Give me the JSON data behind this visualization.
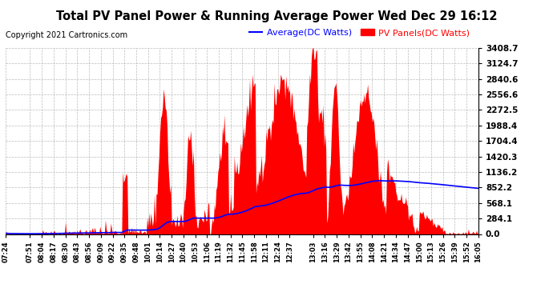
{
  "title": "Total PV Panel Power & Running Average Power Wed Dec 29 16:12",
  "copyright": "Copyright 2021 Cartronics.com",
  "legend_avg": "Average(DC Watts)",
  "legend_pv": "PV Panels(DC Watts)",
  "avg_color": "blue",
  "pv_color": "red",
  "background_color": "white",
  "grid_color": "#aaaaaa",
  "yticks": [
    0.0,
    284.1,
    568.1,
    852.2,
    1136.2,
    1420.3,
    1704.4,
    1988.4,
    2272.5,
    2556.6,
    2840.6,
    3124.7,
    3408.7
  ],
  "ylim": [
    0,
    3408.7
  ],
  "xtick_labels": [
    "07:24",
    "07:51",
    "08:04",
    "08:17",
    "08:30",
    "08:43",
    "08:56",
    "09:09",
    "09:22",
    "09:35",
    "09:48",
    "10:01",
    "10:14",
    "10:27",
    "10:40",
    "10:53",
    "11:06",
    "11:19",
    "11:32",
    "11:45",
    "11:58",
    "12:11",
    "12:24",
    "12:37",
    "13:03",
    "13:16",
    "13:29",
    "13:42",
    "13:55",
    "14:08",
    "14:21",
    "14:34",
    "14:47",
    "15:00",
    "15:13",
    "15:26",
    "15:39",
    "15:52",
    "16:05"
  ]
}
